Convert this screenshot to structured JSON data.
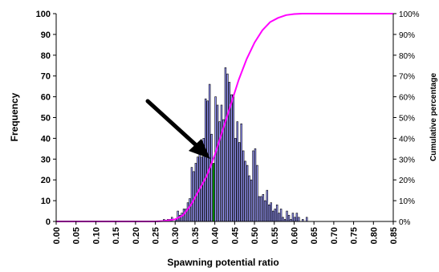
{
  "chart_data": {
    "type": "bar",
    "xlabel": "Spawning potential ratio",
    "ylabel": "Frequency",
    "y2label": "Cumulative percentage",
    "ylim": [
      0,
      100
    ],
    "y2lim": [
      0,
      100
    ],
    "yticks": [
      "0",
      "10",
      "20",
      "30",
      "40",
      "50",
      "60",
      "70",
      "80",
      "90",
      "100"
    ],
    "y2ticks": [
      "0%",
      "10%",
      "20%",
      "30%",
      "40%",
      "50%",
      "60%",
      "70%",
      "80%",
      "90%",
      "100%"
    ],
    "xticks": [
      "0.00",
      "0.05",
      "0.10",
      "0.15",
      "0.20",
      "0.25",
      "0.30",
      "0.35",
      "0.40",
      "0.45",
      "0.50",
      "0.55",
      "0.60",
      "0.65",
      "0.70",
      "0.75",
      "0.80",
      "0.85"
    ],
    "xlim": [
      0,
      0.85
    ],
    "bin_width": 0.005,
    "bar_color": "#9999ff",
    "highlight_color": "#00cc00",
    "highlight_bin": 0.395,
    "cumulative_color": "#ff00ff",
    "series": [
      {
        "name": "Frequency",
        "x": [
          0.27,
          0.275,
          0.28,
          0.285,
          0.29,
          0.295,
          0.3,
          0.305,
          0.31,
          0.315,
          0.32,
          0.325,
          0.33,
          0.335,
          0.34,
          0.345,
          0.35,
          0.355,
          0.36,
          0.365,
          0.37,
          0.375,
          0.38,
          0.385,
          0.39,
          0.395,
          0.4,
          0.405,
          0.41,
          0.415,
          0.42,
          0.425,
          0.43,
          0.435,
          0.44,
          0.445,
          0.45,
          0.455,
          0.46,
          0.465,
          0.47,
          0.475,
          0.48,
          0.485,
          0.49,
          0.495,
          0.5,
          0.505,
          0.51,
          0.515,
          0.52,
          0.525,
          0.53,
          0.535,
          0.54,
          0.545,
          0.55,
          0.555,
          0.56,
          0.565,
          0.57,
          0.575,
          0.58,
          0.585,
          0.59,
          0.595,
          0.6,
          0.605,
          0.61,
          0.615,
          0.62,
          0.625,
          0.63
        ],
        "values": [
          1,
          0,
          1,
          1,
          2,
          0,
          1,
          5,
          3,
          4,
          6,
          6,
          9,
          11,
          26,
          24,
          28,
          31,
          33,
          31,
          40,
          59,
          58,
          66,
          42,
          28,
          60,
          56,
          48,
          56,
          49,
          74,
          71,
          67,
          61,
          61,
          40,
          48,
          38,
          47,
          34,
          29,
          27,
          22,
          20,
          34,
          35,
          27,
          12,
          12,
          13,
          10,
          15,
          8,
          9,
          5,
          6,
          8,
          4,
          6,
          2,
          1,
          5,
          3,
          1,
          4,
          2,
          4,
          2,
          0,
          1,
          0,
          2
        ]
      },
      {
        "name": "Cumulative percentage",
        "x": [
          0.0,
          0.25,
          0.27,
          0.3,
          0.32,
          0.34,
          0.36,
          0.38,
          0.4,
          0.42,
          0.44,
          0.46,
          0.48,
          0.5,
          0.52,
          0.54,
          0.56,
          0.58,
          0.6,
          0.62,
          0.64,
          0.85
        ],
        "values": [
          0,
          0,
          0.2,
          1,
          3,
          8,
          15,
          22,
          32,
          44,
          56,
          68,
          78,
          86,
          92,
          96,
          98,
          99.3,
          99.8,
          100,
          100,
          100
        ]
      }
    ]
  }
}
